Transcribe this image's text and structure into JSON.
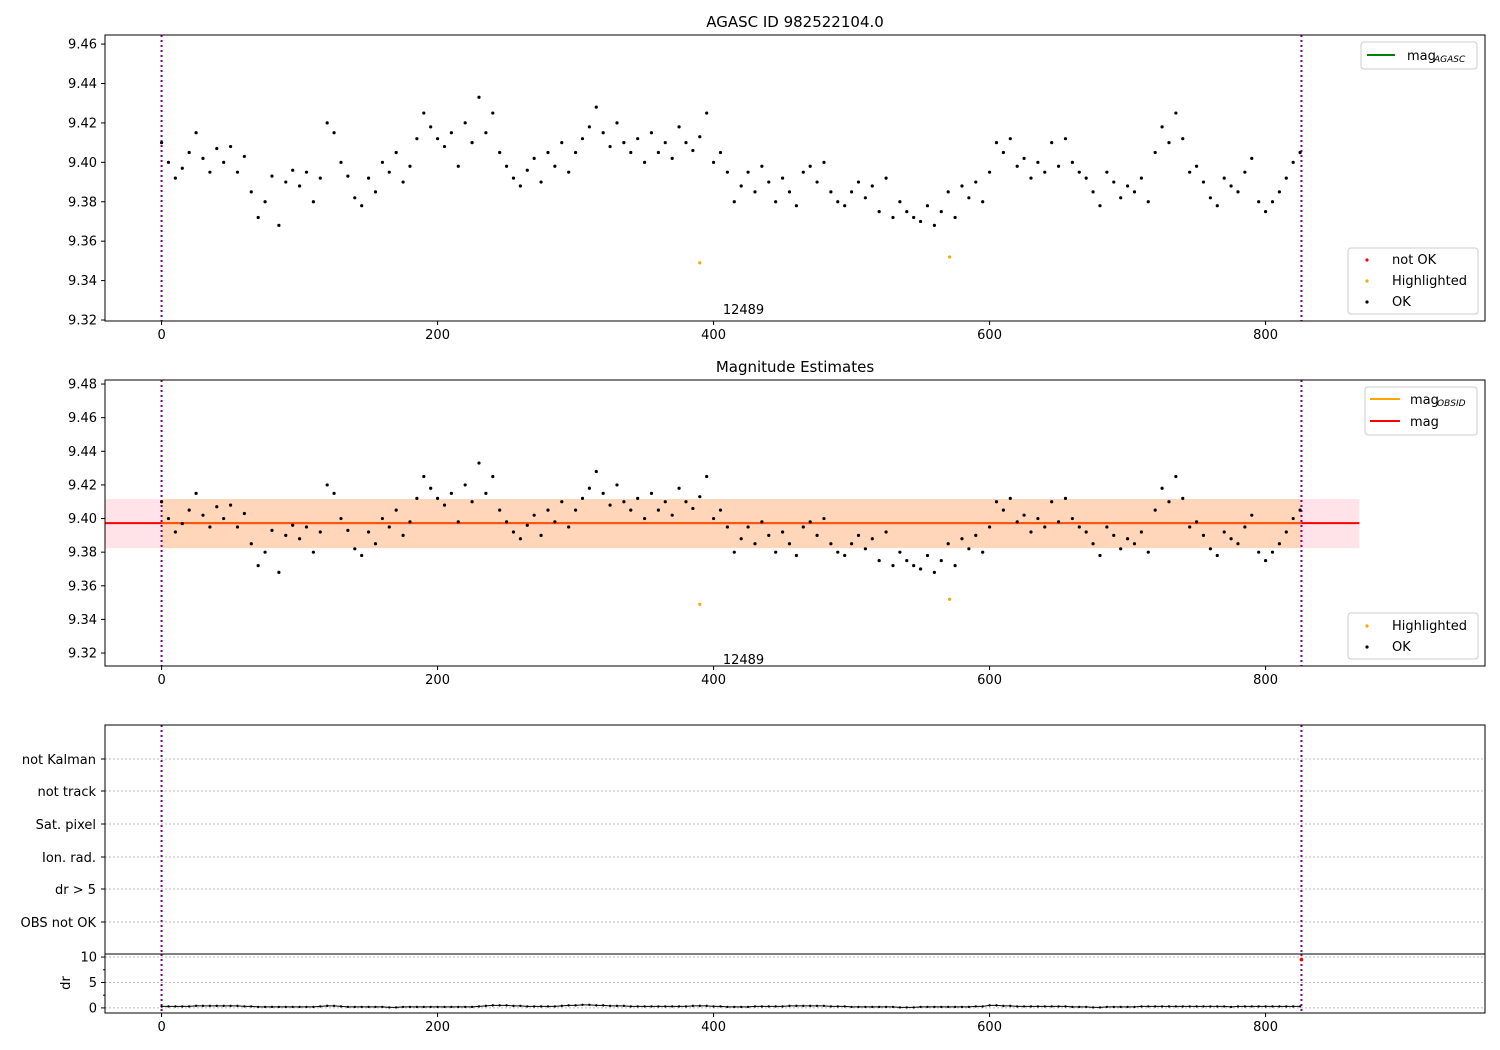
{
  "chart_data": [
    {
      "type": "scatter",
      "title": "AGASC ID 982522104.0",
      "xlim": [
        -41,
        959
      ],
      "ylim": [
        9.3195,
        9.4646
      ],
      "xticks": [
        "0",
        "200",
        "400",
        "600",
        "800"
      ],
      "yticks": [
        "9.32",
        "9.34",
        "9.36",
        "9.38",
        "9.40",
        "9.42",
        "9.44",
        "9.46"
      ],
      "vlines": [
        0,
        826
      ],
      "annotation": {
        "text": "12489",
        "x": 398,
        "y": 9.323
      },
      "legend_lines": [
        {
          "label": "mag",
          "sub": "AGASC",
          "color": "#008000"
        }
      ],
      "legend_points": [
        {
          "label": "not OK",
          "color": "#ff0000"
        },
        {
          "label": "Highlighted",
          "color": "#ffa500"
        },
        {
          "label": "OK",
          "color": "#000000"
        }
      ],
      "highlighted": [
        {
          "x": 390,
          "y": 9.349
        },
        {
          "x": 571,
          "y": 9.352
        }
      ]
    },
    {
      "type": "scatter",
      "title": "Magnitude Estimates",
      "xlim": [
        -41,
        959
      ],
      "ylim": [
        9.3123,
        9.4824
      ],
      "xticks": [
        "0",
        "200",
        "400",
        "600",
        "800"
      ],
      "yticks": [
        "9.32",
        "9.34",
        "9.36",
        "9.38",
        "9.40",
        "9.42",
        "9.44",
        "9.46",
        "9.48"
      ],
      "vlines": [
        0,
        826
      ],
      "annotation": {
        "text": "12489",
        "x": 398,
        "y": 9.316
      },
      "mag": 9.3973,
      "band": [
        9.3824,
        9.4116
      ],
      "band_x": [
        -41,
        868
      ],
      "obsid_band_x": [
        0,
        826
      ],
      "legend_lines": [
        {
          "label": "mag",
          "sub": "OBSID",
          "color": "#ffa500"
        },
        {
          "label": "mag",
          "sub": "",
          "color": "#ff0000"
        }
      ],
      "legend_points": [
        {
          "label": "Highlighted",
          "color": "#ffa500"
        },
        {
          "label": "OK",
          "color": "#000000"
        }
      ],
      "highlighted": [
        {
          "x": 390,
          "y": 9.349
        },
        {
          "x": 571,
          "y": 9.352
        }
      ]
    },
    {
      "type": "scatter",
      "flags": [
        "not Kalman",
        "not track",
        "Sat. pixel",
        "Ion. rad.",
        "dr > 5",
        "OBS not OK"
      ],
      "ylabel": "dr",
      "ylim": [
        -1,
        10.6
      ],
      "yticks": [
        "0",
        "5",
        "10"
      ],
      "xticks": [
        "0",
        "200",
        "400",
        "600",
        "800"
      ],
      "vlines": [
        0,
        826
      ],
      "not_ok_points": [
        {
          "x": 826,
          "y": 9.5
        }
      ]
    }
  ],
  "series": {
    "x_start": 0,
    "x_step": 5,
    "mag": [
      9.41,
      9.4,
      9.392,
      9.397,
      9.405,
      9.415,
      9.402,
      9.395,
      9.407,
      9.4,
      9.408,
      9.395,
      9.403,
      9.385,
      9.372,
      9.38,
      9.393,
      9.368,
      9.39,
      9.396,
      9.388,
      9.395,
      9.38,
      9.392,
      9.42,
      9.415,
      9.4,
      9.393,
      9.382,
      9.378,
      9.392,
      9.385,
      9.4,
      9.395,
      9.405,
      9.39,
      9.398,
      9.412,
      9.425,
      9.418,
      9.412,
      9.408,
      9.415,
      9.398,
      9.42,
      9.41,
      9.433,
      9.415,
      9.425,
      9.405,
      9.398,
      9.392,
      9.388,
      9.396,
      9.402,
      9.39,
      9.405,
      9.398,
      9.41,
      9.395,
      9.405,
      9.412,
      9.418,
      9.428,
      9.415,
      9.408,
      9.42,
      9.41,
      9.405,
      9.412,
      9.4,
      9.415,
      9.405,
      9.41,
      9.402,
      9.418,
      9.41,
      9.406,
      9.413,
      9.425,
      9.4,
      9.405,
      9.395,
      9.38,
      9.388,
      9.395,
      9.385,
      9.398,
      9.39,
      9.38,
      9.392,
      9.385,
      9.378,
      9.395,
      9.398,
      9.39,
      9.4,
      9.385,
      9.38,
      9.378,
      9.385,
      9.39,
      9.382,
      9.388,
      9.375,
      9.392,
      9.372,
      9.38,
      9.375,
      9.372,
      9.37,
      9.378,
      9.368,
      9.375,
      9.385,
      9.372,
      9.388,
      9.382,
      9.39,
      9.38,
      9.395,
      9.41,
      9.405,
      9.412,
      9.398,
      9.402,
      9.392,
      9.4,
      9.395,
      9.41,
      9.398,
      9.412,
      9.4,
      9.395,
      9.392,
      9.385,
      9.378,
      9.395,
      9.39,
      9.382,
      9.388,
      9.385,
      9.392,
      9.38,
      9.405,
      9.418,
      9.41,
      9.425,
      9.412,
      9.395,
      9.398,
      9.39,
      9.382,
      9.378,
      9.392,
      9.388,
      9.385,
      9.395,
      9.402,
      9.38,
      9.375,
      9.38,
      9.385,
      9.392,
      9.4,
      9.405
    ],
    "dr": [
      0.3,
      0.3,
      0.3,
      0.3,
      0.3,
      0.4,
      0.4,
      0.4,
      0.4,
      0.4,
      0.4,
      0.4,
      0.3,
      0.3,
      0.2,
      0.2,
      0.2,
      0.2,
      0.2,
      0.2,
      0.2,
      0.2,
      0.2,
      0.3,
      0.4,
      0.4,
      0.3,
      0.2,
      0.2,
      0.2,
      0.2,
      0.2,
      0.2,
      0.1,
      0.1,
      0.2,
      0.2,
      0.2,
      0.2,
      0.2,
      0.2,
      0.2,
      0.2,
      0.2,
      0.2,
      0.2,
      0.3,
      0.4,
      0.5,
      0.5,
      0.5,
      0.4,
      0.4,
      0.3,
      0.3,
      0.3,
      0.3,
      0.3,
      0.4,
      0.5,
      0.5,
      0.6,
      0.6,
      0.5,
      0.5,
      0.4,
      0.4,
      0.4,
      0.3,
      0.3,
      0.3,
      0.3,
      0.3,
      0.3,
      0.3,
      0.3,
      0.3,
      0.4,
      0.4,
      0.4,
      0.3,
      0.3,
      0.2,
      0.2,
      0.2,
      0.2,
      0.3,
      0.3,
      0.3,
      0.3,
      0.3,
      0.4,
      0.4,
      0.4,
      0.4,
      0.4,
      0.4,
      0.3,
      0.3,
      0.3,
      0.2,
      0.2,
      0.2,
      0.2,
      0.2,
      0.2,
      0.2,
      0.1,
      0.1,
      0.1,
      0.2,
      0.2,
      0.2,
      0.2,
      0.2,
      0.2,
      0.2,
      0.2,
      0.3,
      0.3,
      0.5,
      0.5,
      0.4,
      0.4,
      0.3,
      0.3,
      0.3,
      0.3,
      0.3,
      0.3,
      0.3,
      0.3,
      0.2,
      0.2,
      0.2,
      0.1,
      0.1,
      0.2,
      0.2,
      0.2,
      0.2,
      0.2,
      0.3,
      0.3,
      0.3,
      0.3,
      0.3,
      0.3,
      0.3,
      0.3,
      0.3,
      0.3,
      0.3,
      0.3,
      0.3,
      0.2,
      0.3,
      0.3,
      0.3,
      0.3,
      0.3,
      0.3,
      0.3,
      0.3,
      0.3,
      0.3
    ]
  }
}
